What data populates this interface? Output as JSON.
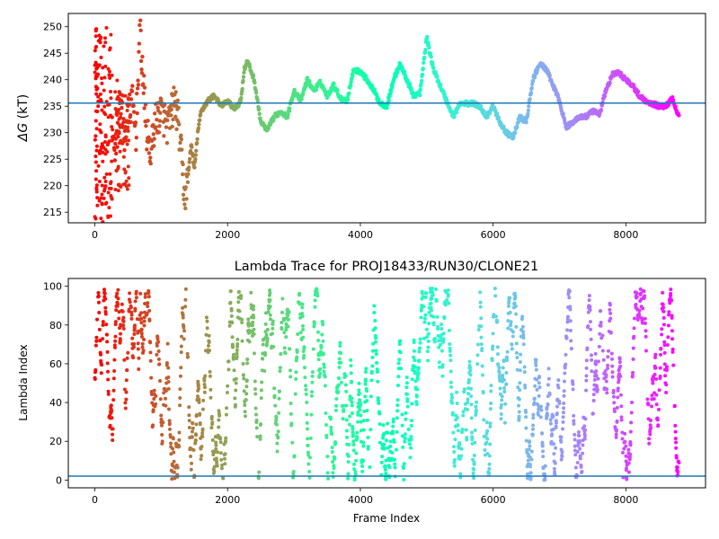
{
  "chart_data": [
    {
      "type": "scatter",
      "title": "",
      "xlabel": "",
      "ylabel": "ΔG (kT)",
      "ylabel_parts": {
        "symbol": "ΔG",
        "unit": " (kT)"
      },
      "xlim": [
        -400,
        9200
      ],
      "ylim": [
        213,
        252.5
      ],
      "xticks": [
        0,
        2000,
        4000,
        6000,
        8000
      ],
      "xtick_labels": [
        "0",
        "2000",
        "4000",
        "6000",
        "8000"
      ],
      "yticks": [
        215,
        220,
        225,
        230,
        235,
        240,
        245,
        250
      ],
      "ytick_labels": [
        "215",
        "220",
        "225",
        "230",
        "235",
        "240",
        "245",
        "250"
      ],
      "colormap": "rainbow (red → purple with frame index)",
      "reference_line": {
        "y": 235.6,
        "color": "#1f77b4"
      },
      "trace_knots": {
        "x": [
          0,
          40,
          80,
          120,
          160,
          200,
          260,
          320,
          380,
          440,
          500,
          560,
          620,
          680,
          720,
          780,
          850,
          900,
          1000,
          1100,
          1200,
          1250,
          1300,
          1350,
          1400,
          1450,
          1500,
          1550,
          1600,
          1700,
          1800,
          1900,
          2000,
          2100,
          2200,
          2250,
          2300,
          2400,
          2500,
          2600,
          2700,
          2800,
          2900,
          3000,
          3100,
          3200,
          3300,
          3400,
          3500,
          3600,
          3700,
          3800,
          3900,
          4000,
          4100,
          4200,
          4300,
          4400,
          4500,
          4600,
          4700,
          4800,
          4900,
          5000,
          5100,
          5200,
          5300,
          5400,
          5500,
          5600,
          5700,
          5800,
          5900,
          6000,
          6100,
          6200,
          6300,
          6400,
          6500,
          6600,
          6700,
          6800,
          6900,
          7000,
          7100,
          7200,
          7300,
          7400,
          7500,
          7600,
          7700,
          7800,
          7900,
          8000,
          8100,
          8200,
          8300,
          8400,
          8500,
          8600,
          8700,
          8800
        ],
        "y": [
          230,
          238,
          228,
          236,
          226,
          240,
          232,
          225,
          237,
          229,
          233,
          236,
          230,
          250.5,
          241,
          230,
          226,
          232,
          234,
          231,
          236,
          233,
          226,
          218,
          221,
          228,
          223,
          230,
          234,
          236,
          237,
          235,
          236,
          234.5,
          236,
          242,
          243.5,
          240,
          232,
          230.5,
          233,
          234,
          233,
          238,
          236,
          240,
          238,
          239.5,
          237,
          239,
          236.5,
          236,
          242,
          241.5,
          240,
          238,
          235.5,
          235,
          240,
          243,
          240,
          237,
          237.5,
          248,
          242,
          239,
          236,
          233,
          235.5,
          235.5,
          235.5,
          235,
          233,
          235,
          232,
          230,
          229,
          233,
          232,
          240,
          243,
          242,
          239,
          236,
          231,
          232,
          233,
          233,
          234,
          233.5,
          238,
          241,
          241.3,
          240,
          239,
          237,
          236,
          235.5,
          235,
          235,
          236.5,
          233
        ]
      },
      "scatter_clusters": [
        {
          "x_range": [
            0,
            40
          ],
          "y_range": [
            213.5,
            251
          ],
          "color": "#ff2a14"
        },
        {
          "x_range": [
            40,
            120
          ],
          "y_range": [
            213,
            251
          ],
          "color": "#ffa05a"
        },
        {
          "x_range": [
            120,
            260
          ],
          "y_range": [
            214,
            251
          ],
          "color": "#b4f08c"
        },
        {
          "x_range": [
            260,
            520
          ],
          "y_range": [
            219,
            240
          ],
          "color": "#8cf0b4"
        }
      ]
    },
    {
      "type": "scatter",
      "title": "Lambda Trace for PROJ18433/RUN30/CLONE21",
      "xlabel": "Frame Index",
      "ylabel": "Lambda Index",
      "xlim": [
        -400,
        9200
      ],
      "ylim": [
        -4,
        104
      ],
      "xticks": [
        0,
        2000,
        4000,
        6000,
        8000
      ],
      "xtick_labels": [
        "0",
        "2000",
        "4000",
        "6000",
        "8000"
      ],
      "yticks": [
        0,
        20,
        40,
        60,
        80,
        100
      ],
      "ytick_labels": [
        "0",
        "20",
        "40",
        "60",
        "80",
        "100"
      ],
      "colormap": "rainbow (red → purple with frame index)",
      "reference_line": {
        "y": 2,
        "color": "#1f77b4"
      },
      "walk_range": {
        "x": [
          0,
          8800
        ],
        "lambda": [
          0,
          99
        ]
      }
    }
  ]
}
